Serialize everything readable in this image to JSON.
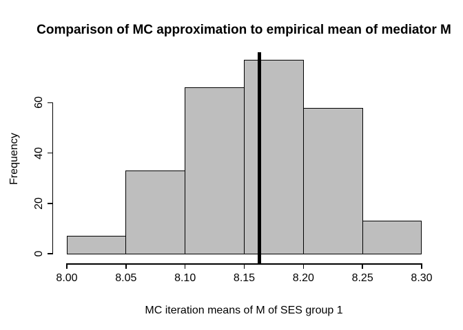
{
  "figure": {
    "background_color": "#FFFFFF",
    "text_color": "#000000"
  },
  "chart_data": {
    "type": "bar",
    "subtype": "histogram",
    "title": "Comparison of MC approximation to empirical mean of mediator M",
    "xlabel": "MC iteration means of M of SES group 1",
    "ylabel": "Frequency",
    "bin_edges": [
      8.0,
      8.05,
      8.1,
      8.15,
      8.2,
      8.25,
      8.3
    ],
    "frequencies": [
      7,
      33,
      66,
      77,
      58,
      13
    ],
    "x_tick_labels": [
      "8.00",
      "8.05",
      "8.10",
      "8.15",
      "8.20",
      "8.25",
      "8.30"
    ],
    "x_tick_values": [
      8.0,
      8.05,
      8.1,
      8.15,
      8.2,
      8.25,
      8.3
    ],
    "y_tick_labels": [
      "0",
      "20",
      "40",
      "60"
    ],
    "y_tick_values": [
      0,
      20,
      40,
      60
    ],
    "xlim": [
      8.0,
      8.3
    ],
    "ylim": [
      0,
      80
    ],
    "mean_line_value": 8.163,
    "grid": "off",
    "legend": "none",
    "bar_fill_color": "#BEBEBE",
    "bar_border_color": "#000000",
    "mean_line_color": "#000000",
    "axis_color": "#000000"
  }
}
